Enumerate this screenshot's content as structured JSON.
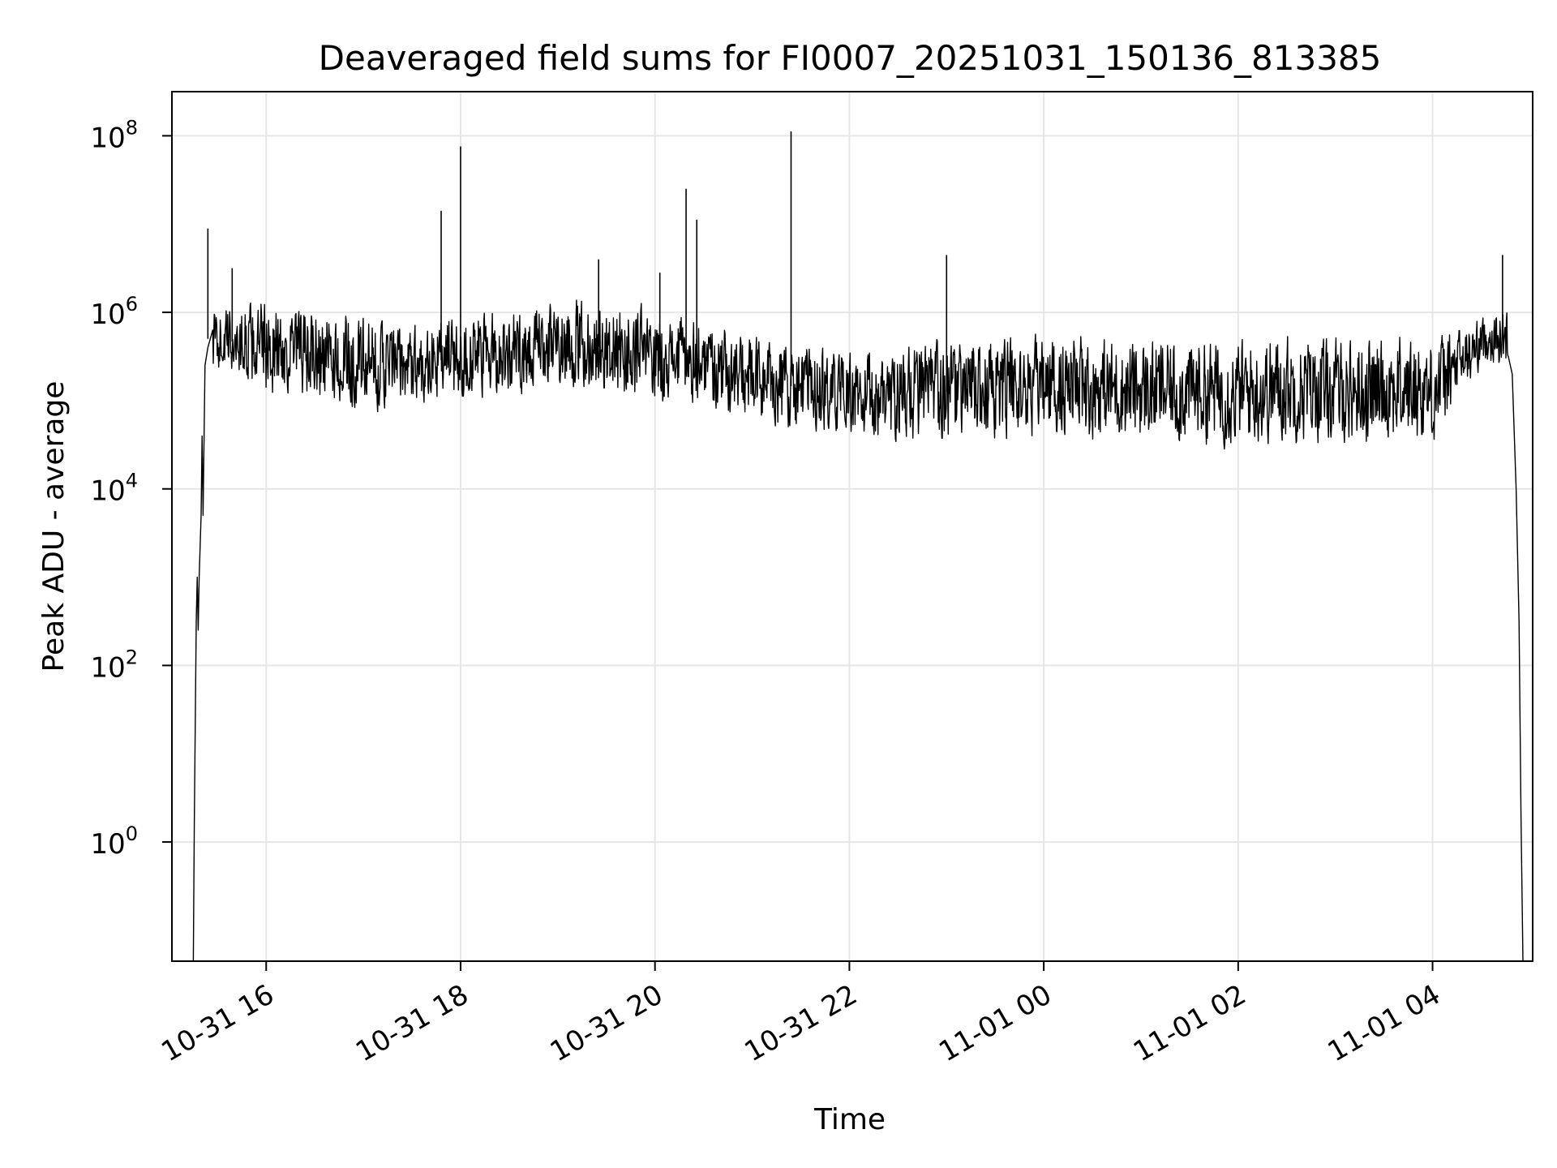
{
  "chart_data": {
    "type": "line",
    "title": "Deaveraged field sums for FI0007_20251031_150136_813385",
    "xlabel": "Time",
    "ylabel": "Peak ADU - average",
    "yscale": "log",
    "grid": true,
    "legend": "none",
    "xlim_hours_from_10_31_00": [
      15.03,
      29.03
    ],
    "ylim_log10": [
      -1.35,
      8.5
    ],
    "x_ticks": [
      {
        "label": "10-31 16",
        "value_hours": 16
      },
      {
        "label": "10-31 18",
        "value_hours": 18
      },
      {
        "label": "10-31 20",
        "value_hours": 20
      },
      {
        "label": "10-31 22",
        "value_hours": 22
      },
      {
        "label": "11-01 00",
        "value_hours": 24
      },
      {
        "label": "11-01 02",
        "value_hours": 26
      },
      {
        "label": "11-01 04",
        "value_hours": 28
      }
    ],
    "y_ticks": [
      {
        "base": "10",
        "exp": "0",
        "log10": 0
      },
      {
        "base": "10",
        "exp": "2",
        "log10": 2
      },
      {
        "base": "10",
        "exp": "4",
        "log10": 4
      },
      {
        "base": "10",
        "exp": "6",
        "log10": 6
      },
      {
        "base": "10",
        "exp": "8",
        "log10": 8
      }
    ],
    "series": [
      {
        "name": "field sums",
        "color": "#000000",
        "envelope_log10": {
          "x_hours": [
            15.35,
            15.5,
            16.0,
            16.5,
            17.0,
            17.5,
            18.0,
            18.5,
            19.0,
            19.5,
            20.0,
            20.5,
            21.0,
            21.5,
            21.9,
            22.2,
            22.6,
            23.0,
            24.0,
            25.0,
            26.0,
            26.5,
            27.0,
            27.5,
            28.0,
            28.3,
            28.55,
            28.75
          ],
          "low": [
            5.3,
            5.3,
            5.0,
            4.9,
            4.8,
            4.9,
            4.9,
            5.0,
            5.1,
            5.0,
            4.9,
            4.9,
            4.65,
            4.6,
            4.55,
            4.45,
            4.45,
            4.45,
            4.5,
            4.45,
            4.4,
            4.45,
            4.4,
            4.45,
            4.4,
            5.0,
            5.4,
            5.3
          ],
          "high": [
            6.1,
            6.1,
            6.2,
            6.1,
            6.0,
            5.9,
            6.1,
            6.1,
            6.2,
            6.2,
            6.1,
            6.0,
            5.8,
            5.7,
            5.6,
            5.6,
            5.75,
            5.75,
            5.8,
            5.8,
            5.8,
            5.85,
            5.8,
            5.85,
            5.8,
            5.9,
            6.0,
            6.1
          ]
        },
        "ramp_start": [
          [
            15.25,
            -1.35
          ],
          [
            15.26,
            0.2
          ],
          [
            15.28,
            2.5
          ],
          [
            15.29,
            3.0
          ],
          [
            15.3,
            2.4
          ],
          [
            15.31,
            3.0
          ],
          [
            15.33,
            3.7
          ],
          [
            15.34,
            4.6
          ],
          [
            15.35,
            3.7
          ],
          [
            15.37,
            5.4
          ],
          [
            15.4,
            5.6
          ],
          [
            15.45,
            5.8
          ]
        ],
        "ramp_end": [
          [
            28.78,
            5.5
          ],
          [
            28.82,
            5.3
          ],
          [
            28.86,
            4.0
          ],
          [
            28.89,
            2.5
          ],
          [
            28.91,
            0.3
          ],
          [
            28.93,
            -1.35
          ]
        ],
        "spikes": [
          {
            "x_hours": 15.4,
            "log10": 6.95
          },
          {
            "x_hours": 15.65,
            "log10": 6.5
          },
          {
            "x_hours": 17.8,
            "log10": 7.15
          },
          {
            "x_hours": 18.0,
            "log10": 7.88
          },
          {
            "x_hours": 19.42,
            "log10": 6.6
          },
          {
            "x_hours": 20.05,
            "log10": 6.45
          },
          {
            "x_hours": 20.32,
            "log10": 7.4
          },
          {
            "x_hours": 20.43,
            "log10": 7.05
          },
          {
            "x_hours": 21.4,
            "log10": 8.05
          },
          {
            "x_hours": 23.0,
            "log10": 6.65
          },
          {
            "x_hours": 28.72,
            "log10": 6.65
          }
        ]
      }
    ]
  }
}
